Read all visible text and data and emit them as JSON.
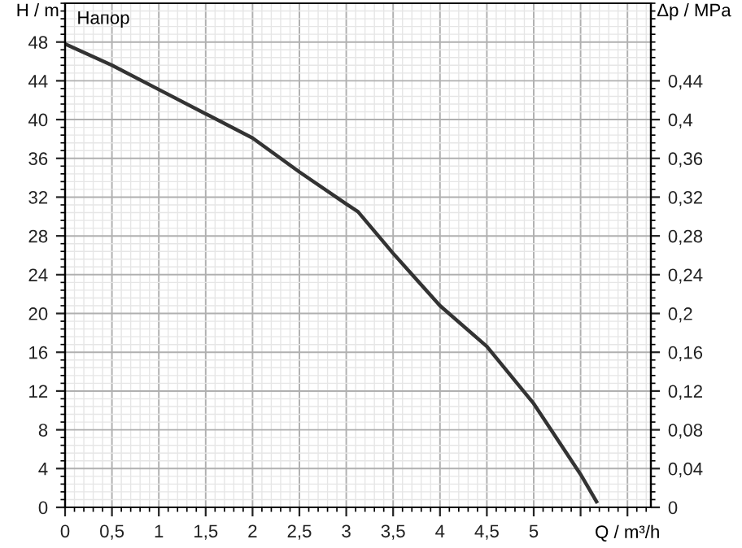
{
  "chart_data": {
    "type": "line",
    "xlabel": "Q / m³/h",
    "ylabel": "H / m",
    "y2label": "Δp / MPa",
    "annotations": [
      "Напор"
    ],
    "series": [
      {
        "color": "#333333",
        "x": [
          0,
          0.5,
          1,
          1.5,
          2,
          2.5,
          3,
          3.125,
          3.5,
          4,
          4.5,
          5,
          5.5,
          5.67
        ],
        "values": [
          47.8,
          45.6,
          43.1,
          40.6,
          38.1,
          34.6,
          31.3,
          30.5,
          26.2,
          20.8,
          16.6,
          10.7,
          3.4,
          0.6
        ]
      }
    ],
    "xlim": [
      0,
      6.25
    ],
    "ylim": [
      0,
      52
    ],
    "y2lim": [
      0,
      0.52
    ],
    "xticks": [
      0,
      {
        "value": 0.5,
        "label": "0,5"
      },
      1,
      {
        "value": 1.5,
        "label": "1,5"
      },
      2,
      {
        "value": 2.5,
        "label": "2,5"
      },
      3,
      {
        "value": 3.5,
        "label": "3,5"
      },
      4,
      {
        "value": 4.5,
        "label": "4,5"
      },
      5,
      {
        "value": 5.5,
        "label": null
      },
      {
        "value": 6,
        "label": null
      }
    ],
    "yticks": [
      0,
      4,
      8,
      12,
      16,
      20,
      24,
      28,
      32,
      36,
      40,
      44,
      48
    ],
    "y2ticks": [
      0,
      {
        "value": 0.04,
        "label": "0,04"
      },
      {
        "value": 0.08,
        "label": "0,08"
      },
      {
        "value": 0.12,
        "label": "0,12"
      },
      {
        "value": 0.16,
        "label": "0,16"
      },
      {
        "value": 0.2,
        "label": "0,2"
      },
      {
        "value": 0.24,
        "label": "0,24"
      },
      {
        "value": 0.28,
        "label": "0,28"
      },
      {
        "value": 0.32,
        "label": "0,32"
      },
      {
        "value": 0.36,
        "label": "0,36"
      },
      {
        "value": 0.4,
        "label": "0,4"
      },
      {
        "value": 0.44,
        "label": "0,44"
      }
    ],
    "grid": true,
    "legend": false,
    "marker": "none",
    "line_style": "solid"
  }
}
